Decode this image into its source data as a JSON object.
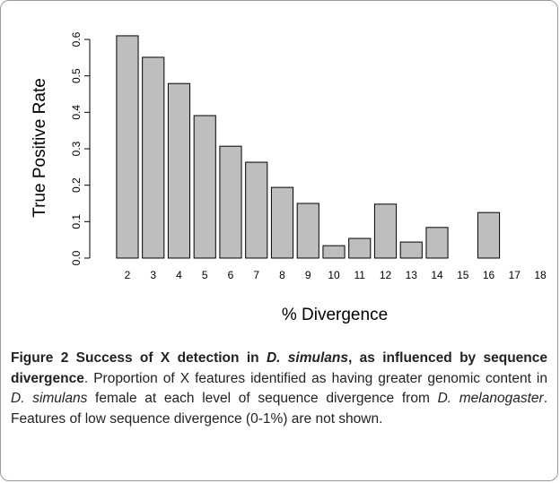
{
  "chart_data": {
    "type": "bar",
    "y_label": "True Positive Rate",
    "x_label": "% Divergence",
    "categories": [
      "2",
      "3",
      "4",
      "5",
      "6",
      "7",
      "8",
      "9",
      "10",
      "11",
      "12",
      "13",
      "14",
      "15",
      "16",
      "17",
      "18"
    ],
    "values": [
      0.61,
      0.551,
      0.479,
      0.391,
      0.307,
      0.263,
      0.194,
      0.15,
      0.034,
      0.054,
      0.148,
      0.044,
      0.084,
      0,
      0.125,
      0,
      0
    ],
    "color": "#bebebe",
    "ylim": [
      0,
      0.6
    ],
    "yticks": [
      {
        "value": 0,
        "label": "0.0"
      },
      0.1,
      0.2,
      0.3,
      0.4,
      0.5,
      0.6
    ],
    "grid": false
  },
  "caption": {
    "label": "Figure 2",
    "title": [
      "Success of X detection in ",
      "D. simulans",
      ", as influenced by sequence divergence"
    ],
    "text": [
      ". Proportion of X features identified as having greater genomic content in ",
      "D. simulans",
      " female at each level of sequence divergence from ",
      "D. melanogaster",
      ". Features of low sequence divergence (0-1%) are not shown."
    ]
  }
}
